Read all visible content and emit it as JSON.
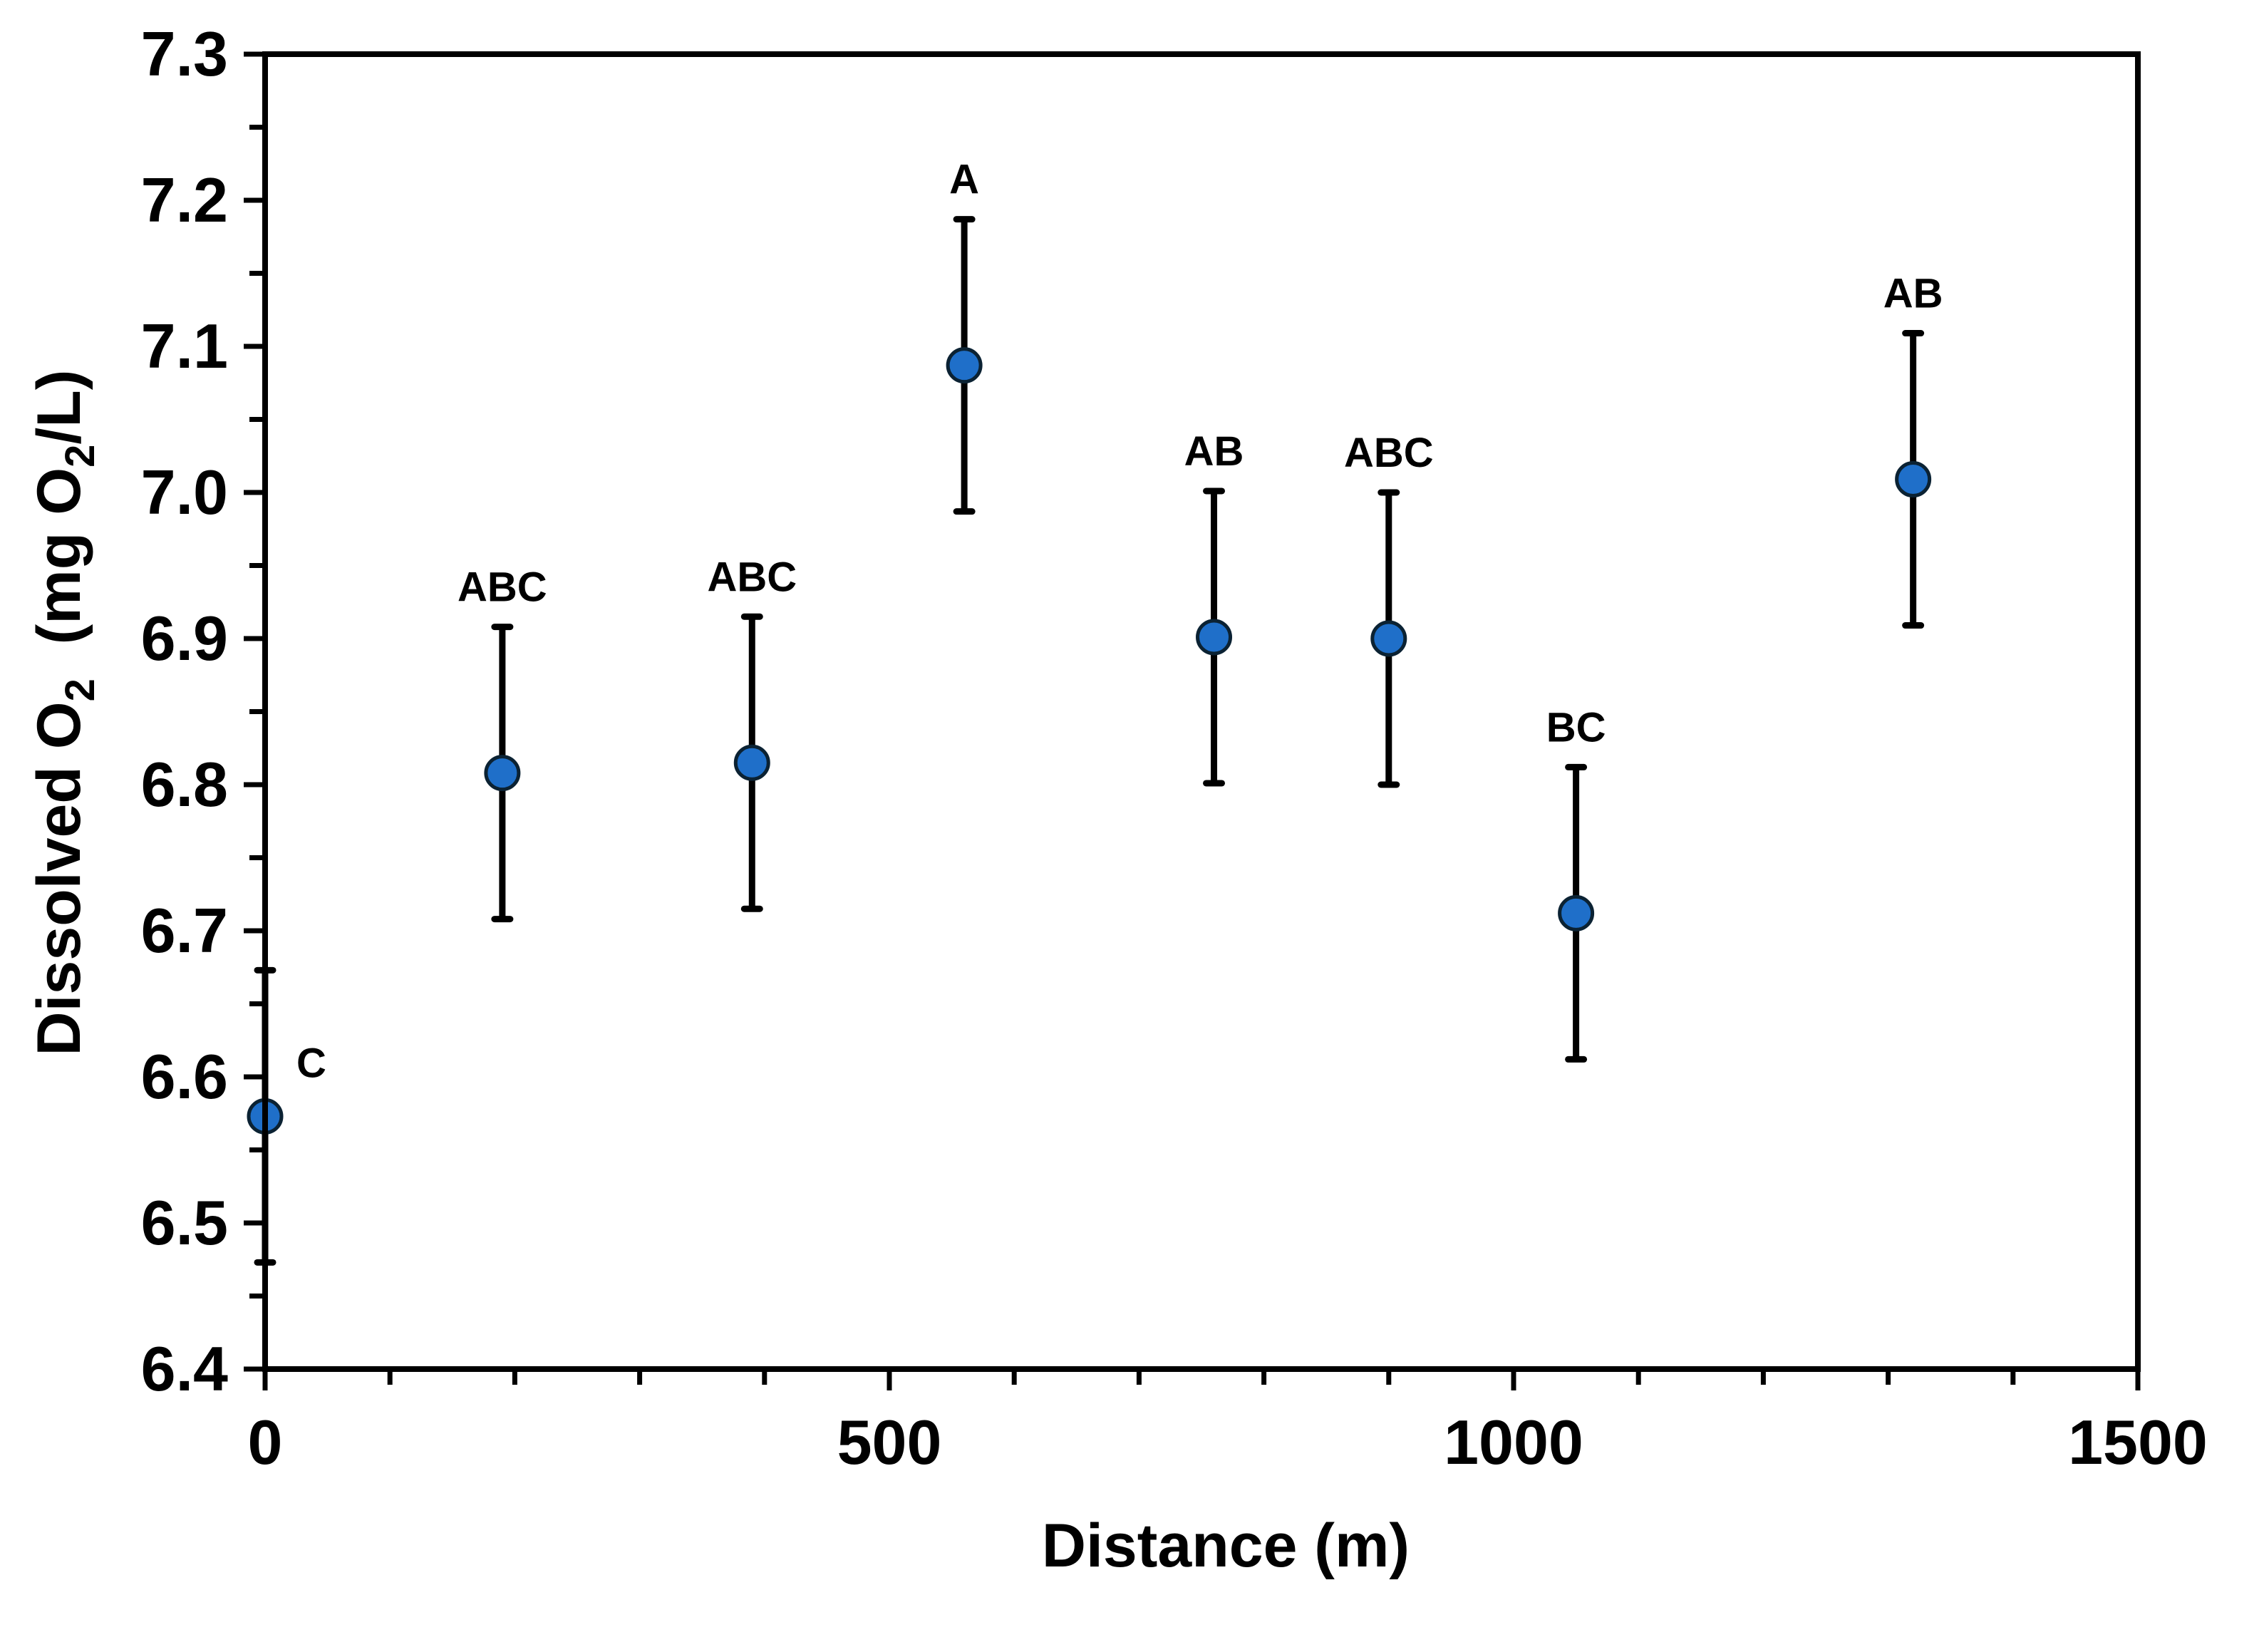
{
  "chart_data": {
    "type": "scatter",
    "title": "",
    "xlabel": "Distance  (m)",
    "ylabel": {
      "prefix": "Dissolved O",
      "prefix_sub": "2",
      "middle": "  (mg O",
      "middle_sub": "2",
      "suffix": "/L)"
    },
    "xlim": [
      0,
      1500
    ],
    "ylim": [
      6.4,
      7.3
    ],
    "x_major_ticks": [
      0,
      500,
      1000,
      1500
    ],
    "x_tick_labels": [
      "0",
      "500",
      "1000",
      "1500"
    ],
    "x_minor_step": 100,
    "y_major_ticks": [
      6.4,
      6.5,
      6.6,
      6.7,
      6.8,
      6.9,
      7.0,
      7.1,
      7.2,
      7.3
    ],
    "y_tick_labels": [
      "6.4",
      "6.5",
      "6.6",
      "6.7",
      "6.8",
      "6.9",
      "7.0",
      "7.1",
      "7.2",
      "7.3"
    ],
    "y_minor_step": 0.05,
    "grid": false,
    "legend": "none",
    "series": [
      {
        "name": "Dissolved O2",
        "color": "#1f6fc9",
        "points": [
          {
            "x": 0,
            "y": 6.573,
            "err": 0.1,
            "label": "C"
          },
          {
            "x": 190,
            "y": 6.808,
            "err": 0.1,
            "label": "ABC"
          },
          {
            "x": 390,
            "y": 6.815,
            "err": 0.1,
            "label": "ABC"
          },
          {
            "x": 560,
            "y": 7.087,
            "err": 0.1,
            "label": "A"
          },
          {
            "x": 760,
            "y": 6.901,
            "err": 0.1,
            "label": "AB"
          },
          {
            "x": 900,
            "y": 6.9,
            "err": 0.1,
            "label": "ABC"
          },
          {
            "x": 1050,
            "y": 6.712,
            "err": 0.1,
            "label": "BC"
          },
          {
            "x": 1320,
            "y": 7.009,
            "err": 0.1,
            "label": "AB"
          }
        ]
      }
    ]
  }
}
